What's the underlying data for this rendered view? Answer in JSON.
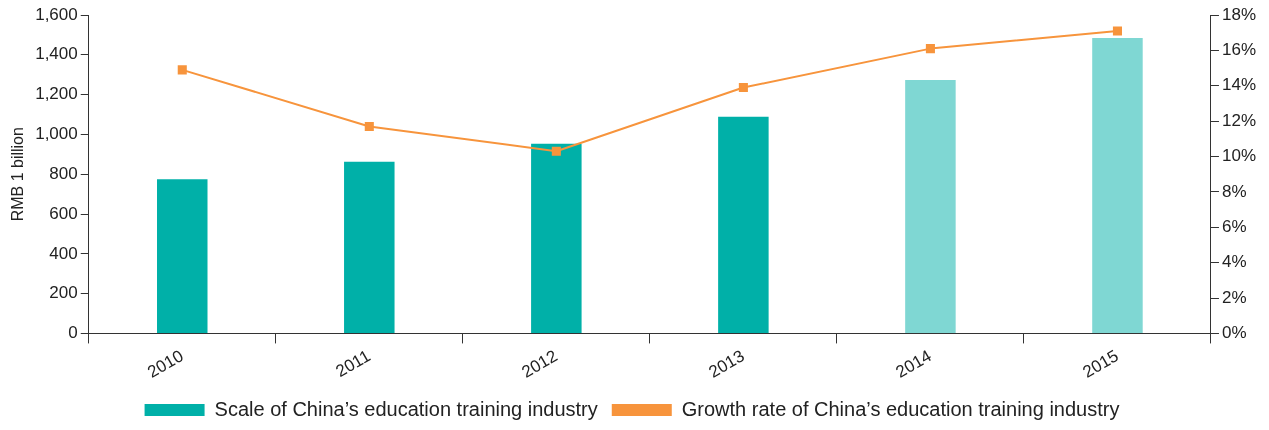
{
  "chart_data": {
    "type": "bar",
    "ylabel": "RMB 1 billion",
    "categories": [
      "2010",
      "2011",
      "2012",
      "2013",
      "2014",
      "2015"
    ],
    "series": [
      {
        "name": "Scale of China’s education training industry",
        "color": "#00b0a8",
        "colors": [
          "#00b0a8",
          "#00b0a8",
          "#00b0a8",
          "#00b0a8",
          "#7fd7d3",
          "#7fd7d3"
        ],
        "values": [
          775,
          863,
          953,
          1089,
          1274,
          1484
        ]
      },
      {
        "name": "Growth rate of China’s education training industry",
        "type": "line",
        "axis": "y2",
        "color": "#f7943c",
        "values": [
          14.9,
          11.7,
          10.3,
          13.9,
          16.1,
          17.1
        ]
      }
    ],
    "ylim": [
      0,
      1600
    ],
    "yticks": [
      0,
      200,
      400,
      600,
      800,
      {
        "value": 1000,
        "label": "1,000"
      },
      {
        "value": 1200,
        "label": "1,200"
      },
      {
        "value": 1400,
        "label": "1,400"
      },
      {
        "value": 1600,
        "label": "1,600"
      }
    ],
    "y2lim": [
      0,
      18
    ],
    "y2ticks": [
      {
        "value": 0,
        "label": "0%"
      },
      {
        "value": 2,
        "label": "2%"
      },
      {
        "value": 4,
        "label": "4%"
      },
      {
        "value": 6,
        "label": "6%"
      },
      {
        "value": 8,
        "label": "8%"
      },
      {
        "value": 10,
        "label": "10%"
      },
      {
        "value": 12,
        "label": "12%"
      },
      {
        "value": 14,
        "label": "14%"
      },
      {
        "value": 16,
        "label": "16%"
      },
      {
        "value": 18,
        "label": "18%"
      }
    ],
    "grid": false,
    "legend": "bottom",
    "marker": "square",
    "line_style": "solid"
  }
}
